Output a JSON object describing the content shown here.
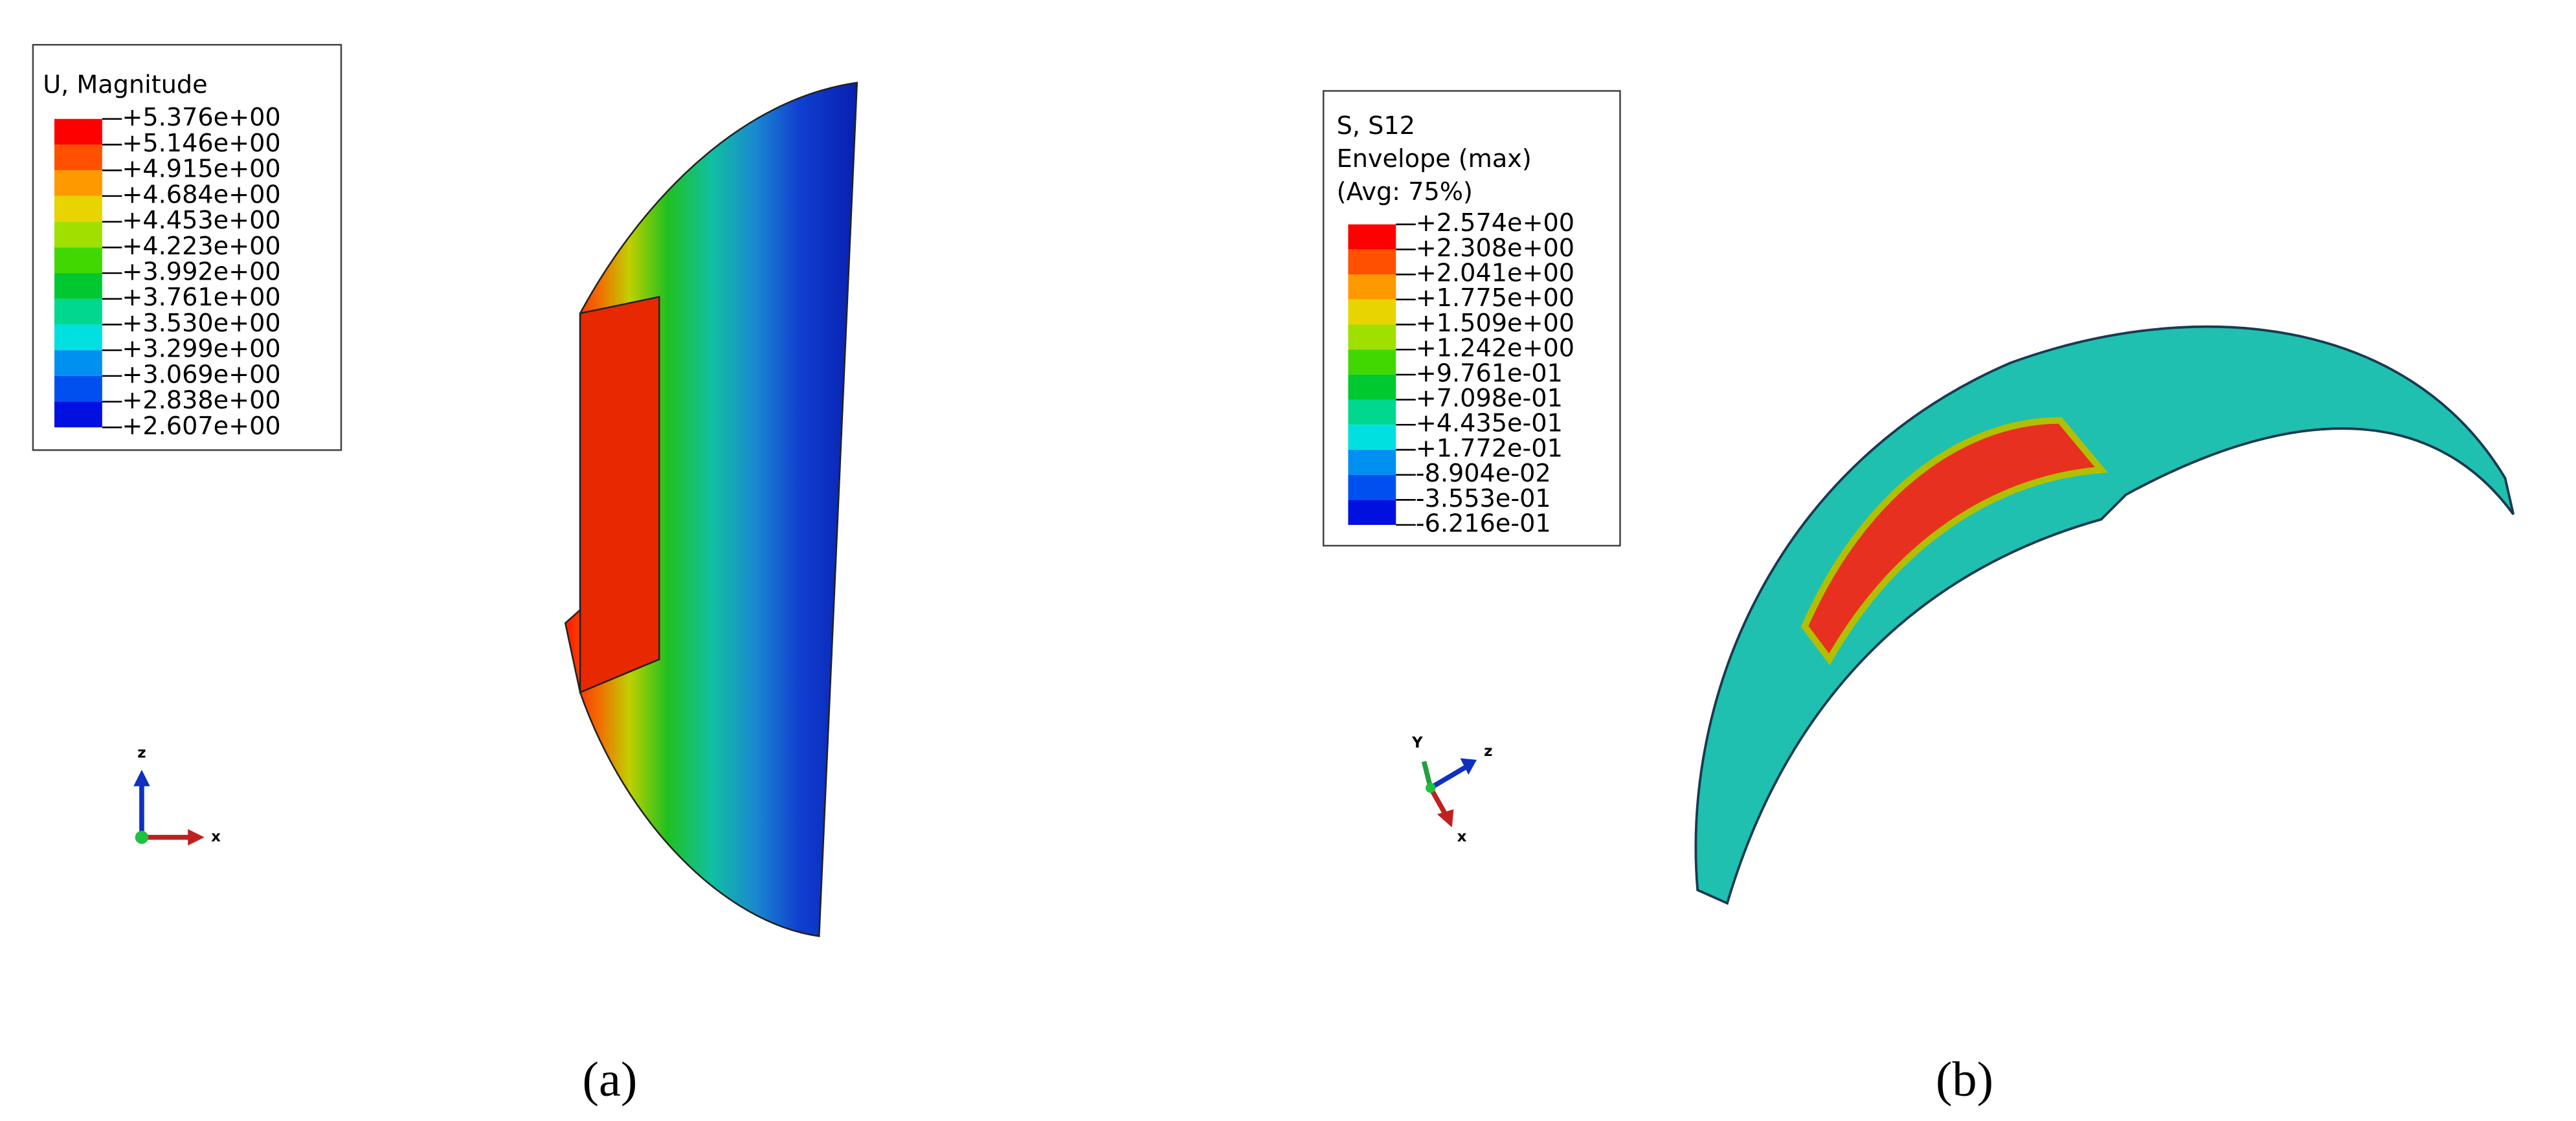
{
  "panels": [
    {
      "legend": {
        "title": [
          "U, Magnitude"
        ],
        "labels": [
          "+5.376e+00",
          "+5.146e+00",
          "+4.915e+00",
          "+4.684e+00",
          "+4.453e+00",
          "+4.223e+00",
          "+3.992e+00",
          "+3.761e+00",
          "+3.530e+00",
          "+3.299e+00",
          "+3.069e+00",
          "+2.838e+00",
          "+2.607e+00"
        ]
      },
      "triad": [
        "z",
        "x"
      ],
      "caption": "(a)"
    },
    {
      "legend": {
        "title": [
          "S, S12",
          "Envelope (max)",
          "(Avg: 75%)"
        ],
        "labels": [
          "+2.574e+00",
          "+2.308e+00",
          "+2.041e+00",
          "+1.775e+00",
          "+1.509e+00",
          "+1.242e+00",
          "+9.761e-01",
          "+7.098e-01",
          "+4.435e-01",
          "+1.772e-01",
          "-8.904e-02",
          "-3.553e-01",
          "-6.216e-01"
        ]
      },
      "triad": [
        "Y",
        "z",
        "x"
      ],
      "caption": "(b)"
    }
  ]
}
